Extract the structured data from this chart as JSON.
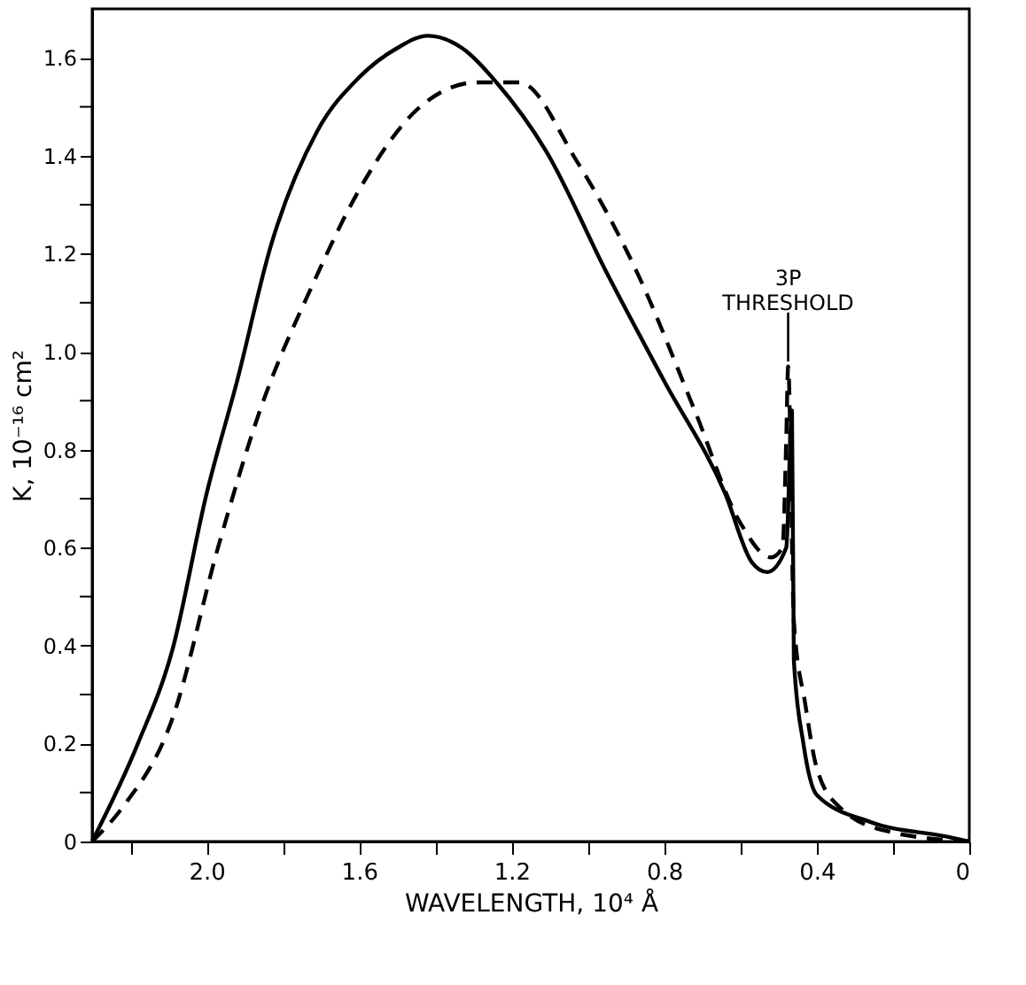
{
  "chart_data": {
    "type": "line",
    "xlabel": "WAVELENGTH, 10⁴ Å",
    "ylabel": "K, 10⁻¹⁶ cm²",
    "xlim": [
      2.3,
      0
    ],
    "ylim": [
      0,
      1.7
    ],
    "xticks": [
      {
        "value": 2.2,
        "label": null
      },
      {
        "value": 2.0,
        "label": "2.0"
      },
      {
        "value": 1.8,
        "label": null
      },
      1.6,
      {
        "value": 1.4,
        "label": null
      },
      1.2,
      {
        "value": 1.0,
        "label": null
      },
      0.8,
      {
        "value": 0.6,
        "label": null
      },
      0.4,
      {
        "value": 0.2,
        "label": null
      },
      0
    ],
    "yticks": [
      0,
      {
        "value": 0.1,
        "label": null
      },
      0.2,
      {
        "value": 0.3,
        "label": null
      },
      0.4,
      {
        "value": 0.5,
        "label": null
      },
      0.6,
      {
        "value": 0.7,
        "label": null
      },
      0.8,
      {
        "value": 0.9,
        "label": null
      },
      {
        "value": 1.0,
        "label": "1.0"
      },
      {
        "value": 1.1,
        "label": null
      },
      1.2,
      {
        "value": 1.3,
        "label": null
      },
      1.4,
      {
        "value": 1.5,
        "label": null
      },
      1.6
    ],
    "grid": false,
    "marker": "none",
    "annotations": [
      {
        "text": "3P\nTHRESHOLD",
        "x": 0.475,
        "y": 0.98
      }
    ],
    "series": [
      {
        "color": "#000000",
        "line_style": "solid",
        "x": [
          2.3,
          2.18,
          2.09,
          2.0,
          1.92,
          1.83,
          1.71,
          1.6,
          1.5,
          1.42,
          1.33,
          1.24,
          1.11,
          0.95,
          0.8,
          0.64,
          0.57,
          0.53,
          0.48,
          0.465,
          0.46,
          0.435,
          0.4,
          0.26,
          0.06,
          0
        ],
        "values": [
          0,
          0.2,
          0.39,
          0.71,
          0.94,
          1.22,
          1.45,
          1.56,
          1.62,
          1.645,
          1.62,
          1.55,
          1.41,
          1.16,
          0.94,
          0.71,
          0.57,
          0.55,
          0.6,
          0.88,
          0.37,
          0.2,
          0.095,
          0.04,
          0.01,
          0
        ]
      },
      {
        "color": "#000000",
        "line_style": "dashed",
        "x": [
          2.3,
          2.22,
          2.09,
          1.97,
          1.86,
          1.72,
          1.6,
          1.44,
          1.29,
          1.18,
          1.03,
          0.87,
          0.72,
          0.6,
          0.52,
          0.49,
          0.48,
          0.475,
          0.46,
          0.43,
          0.4,
          0.34,
          0.21,
          0
        ],
        "values": [
          0,
          0.07,
          0.25,
          0.6,
          0.88,
          1.14,
          1.33,
          1.5,
          1.55,
          1.55,
          1.39,
          1.16,
          0.88,
          0.65,
          0.58,
          0.6,
          0.82,
          0.97,
          0.45,
          0.28,
          0.15,
          0.07,
          0.02,
          0
        ]
      }
    ]
  }
}
